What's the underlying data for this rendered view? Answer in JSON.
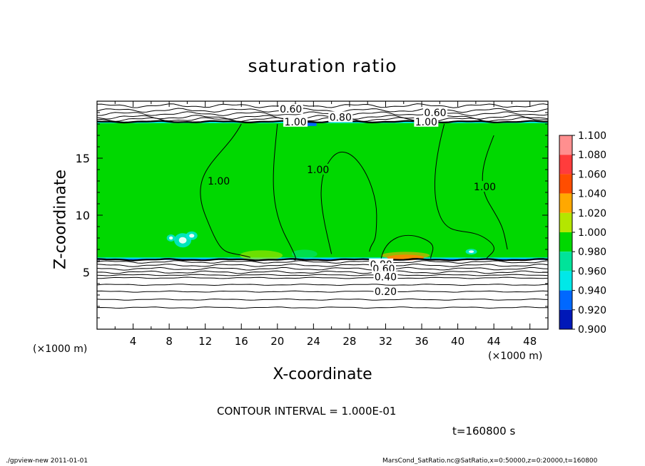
{
  "chart_data": {
    "type": "heatmap",
    "title": "saturation ratio",
    "xlabel": "X-coordinate",
    "ylabel": "Z-coordinate",
    "x_unit_left": "(×1000 m)",
    "x_unit_right": "(×1000 m)",
    "xlim": [
      0,
      50
    ],
    "ylim": [
      0,
      20
    ],
    "x_ticks": [
      4,
      8,
      12,
      16,
      20,
      24,
      28,
      32,
      36,
      40,
      44,
      48
    ],
    "x_tick_labels": [
      "4",
      "8",
      "12",
      "16",
      "20",
      "24",
      "28",
      "32",
      "36",
      "40",
      "44",
      "48"
    ],
    "y_ticks": [
      5,
      10,
      15
    ],
    "y_tick_labels": [
      "5",
      "10",
      "15"
    ],
    "colorbar": {
      "levels": [
        1.1,
        1.08,
        1.06,
        1.04,
        1.02,
        1.0,
        0.98,
        0.96,
        0.94,
        0.92,
        0.9
      ],
      "labels": [
        "1.100",
        "1.080",
        "1.060",
        "1.040",
        "1.020",
        "1.000",
        "0.980",
        "0.960",
        "0.940",
        "0.920",
        "0.900"
      ],
      "colors": [
        "#ff8f8f",
        "#ff3c3c",
        "#ff4d00",
        "#ffa800",
        "#b4e600",
        "#00d800",
        "#00e39a",
        "#00e8e8",
        "#0068ff",
        "#0018b8",
        "#5a10a8"
      ]
    },
    "fill": {
      "saturated_region_z": [
        6.1,
        18.2
      ],
      "saturated_value": 1.0,
      "below_region_fill": "white",
      "above_region_fill": "white"
    },
    "contour_labels": [
      {
        "text": "0.60",
        "x": 21.5,
        "z": 19.3
      },
      {
        "text": "0.80",
        "x": 27.0,
        "z": 18.6
      },
      {
        "text": "1.00",
        "x": 22.0,
        "z": 18.2
      },
      {
        "text": "0.60",
        "x": 37.5,
        "z": 19.0
      },
      {
        "text": "1.00",
        "x": 36.5,
        "z": 18.2
      },
      {
        "text": "1.00",
        "x": 13.5,
        "z": 13.0
      },
      {
        "text": "1.00",
        "x": 24.5,
        "z": 14.0
      },
      {
        "text": "1.00",
        "x": 43.0,
        "z": 12.5
      },
      {
        "text": "0.80",
        "x": 31.5,
        "z": 5.7
      },
      {
        "text": "0.60",
        "x": 31.8,
        "z": 5.3
      },
      {
        "text": "0.40",
        "x": 32.0,
        "z": 4.6
      },
      {
        "text": "0.20",
        "x": 32.0,
        "z": 3.3
      }
    ]
  },
  "contour_interval_text": "CONTOUR INTERVAL = 1.000E-01",
  "time_text": "t=160800 s",
  "footer_left": "./gpview-new   2011-01-01",
  "footer_right": "MarsCond_SatRatio.nc@SatRatio,x=0:50000,z=0:20000,t=160800"
}
